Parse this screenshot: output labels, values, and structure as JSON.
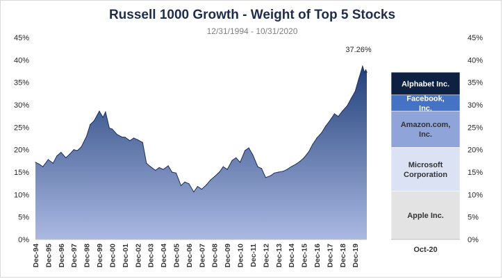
{
  "chart_data": [
    {
      "type": "area",
      "title": "Russell 1000 Growth - Weight of Top 5 Stocks",
      "subtitle": "12/31/1994 - 10/31/2020",
      "ylim": [
        0,
        45
      ],
      "y_ticks": [
        "0%",
        "5%",
        "10%",
        "15%",
        "20%",
        "25%",
        "30%",
        "35%",
        "40%",
        "45%"
      ],
      "x_ticks": [
        "Dec-94",
        "Dec-95",
        "Dec-96",
        "Dec-97",
        "Dec-98",
        "Dec-99",
        "Dec-00",
        "Dec-01",
        "Dec-02",
        "Dec-03",
        "Dec-04",
        "Dec-05",
        "Dec-06",
        "Dec-07",
        "Dec-08",
        "Dec-09",
        "Dec-10",
        "Dec-11",
        "Dec-12",
        "Dec-13",
        "Dec-14",
        "Dec-15",
        "Dec-16",
        "Dec-17",
        "Dec-18",
        "Dec-19"
      ],
      "grid": false,
      "annotation": "37.26%",
      "colors": {
        "fill_top": "#22407a",
        "fill_bottom": "#aab9e2",
        "line": "#1a2f5a"
      },
      "x": [
        1994.92,
        1995.2,
        1995.5,
        1995.92,
        1996.3,
        1996.6,
        1996.92,
        1997.3,
        1997.6,
        1997.92,
        1998.2,
        1998.5,
        1998.92,
        1999.2,
        1999.5,
        1999.92,
        2000.2,
        2000.4,
        2000.7,
        2000.92,
        2001.3,
        2001.7,
        2001.92,
        2002.3,
        2002.6,
        2002.92,
        2003.3,
        2003.6,
        2003.92,
        2004.3,
        2004.6,
        2004.92,
        2005.3,
        2005.6,
        2005.92,
        2006.3,
        2006.6,
        2006.92,
        2007.3,
        2007.6,
        2007.92,
        2008.3,
        2008.6,
        2008.92,
        2009.3,
        2009.6,
        2009.92,
        2010.3,
        2010.6,
        2010.92,
        2011.3,
        2011.6,
        2011.92,
        2012.3,
        2012.6,
        2012.92,
        2013.3,
        2013.6,
        2013.92,
        2014.3,
        2014.6,
        2014.92,
        2015.3,
        2015.6,
        2015.92,
        2016.3,
        2016.6,
        2016.92,
        2017.3,
        2017.6,
        2017.92,
        2018.3,
        2018.6,
        2018.92,
        2019.3,
        2019.6,
        2019.92,
        2020.2,
        2020.5,
        2020.65,
        2020.75,
        2020.83
      ],
      "values": [
        17.2,
        16.8,
        16.2,
        17.8,
        17.0,
        18.6,
        19.4,
        18.2,
        19.0,
        20.0,
        19.8,
        20.6,
        23.0,
        25.6,
        26.4,
        28.6,
        27.2,
        28.4,
        24.8,
        24.6,
        23.4,
        22.8,
        22.8,
        22.0,
        22.6,
        22.2,
        21.6,
        17.0,
        16.2,
        15.4,
        16.0,
        15.6,
        16.4,
        15.0,
        14.8,
        12.0,
        12.8,
        12.4,
        10.6,
        11.8,
        11.2,
        12.2,
        13.2,
        14.0,
        15.0,
        16.2,
        15.6,
        17.6,
        18.2,
        17.2,
        19.8,
        20.4,
        18.8,
        16.2,
        15.8,
        13.8,
        14.2,
        14.8,
        15.0,
        15.2,
        15.6,
        16.2,
        16.8,
        17.4,
        18.2,
        19.6,
        21.2,
        22.6,
        23.8,
        25.2,
        26.4,
        28.0,
        27.4,
        28.6,
        29.8,
        31.4,
        33.0,
        35.8,
        38.6,
        37.2,
        37.8,
        37.26
      ]
    },
    {
      "type": "bar",
      "stacked": true,
      "categories": [
        "Oct-20"
      ],
      "ylim": [
        0,
        45
      ],
      "y_ticks": [
        "0%",
        "5%",
        "10%",
        "15%",
        "20%",
        "25%",
        "30%",
        "35%",
        "40%",
        "45%"
      ],
      "series": [
        {
          "name": "Apple Inc.",
          "values": [
            10.8
          ],
          "color": "#e3e3e3",
          "text_color": "#333333"
        },
        {
          "name": "Microsoft Corporation",
          "values": [
            9.7
          ],
          "color": "#dbe2f3",
          "text_color": "#333333"
        },
        {
          "name": "Amazon.com, Inc.",
          "values": [
            8.1
          ],
          "color": "#8fa4d8",
          "text_color": "#333333"
        },
        {
          "name": "Facebook, Inc.",
          "values": [
            3.6
          ],
          "color": "#4472c4",
          "text_color": "#ffffff"
        },
        {
          "name": "Alphabet Inc.",
          "values": [
            5.06
          ],
          "color": "#0e2143",
          "text_color": "#ffffff"
        }
      ]
    }
  ]
}
